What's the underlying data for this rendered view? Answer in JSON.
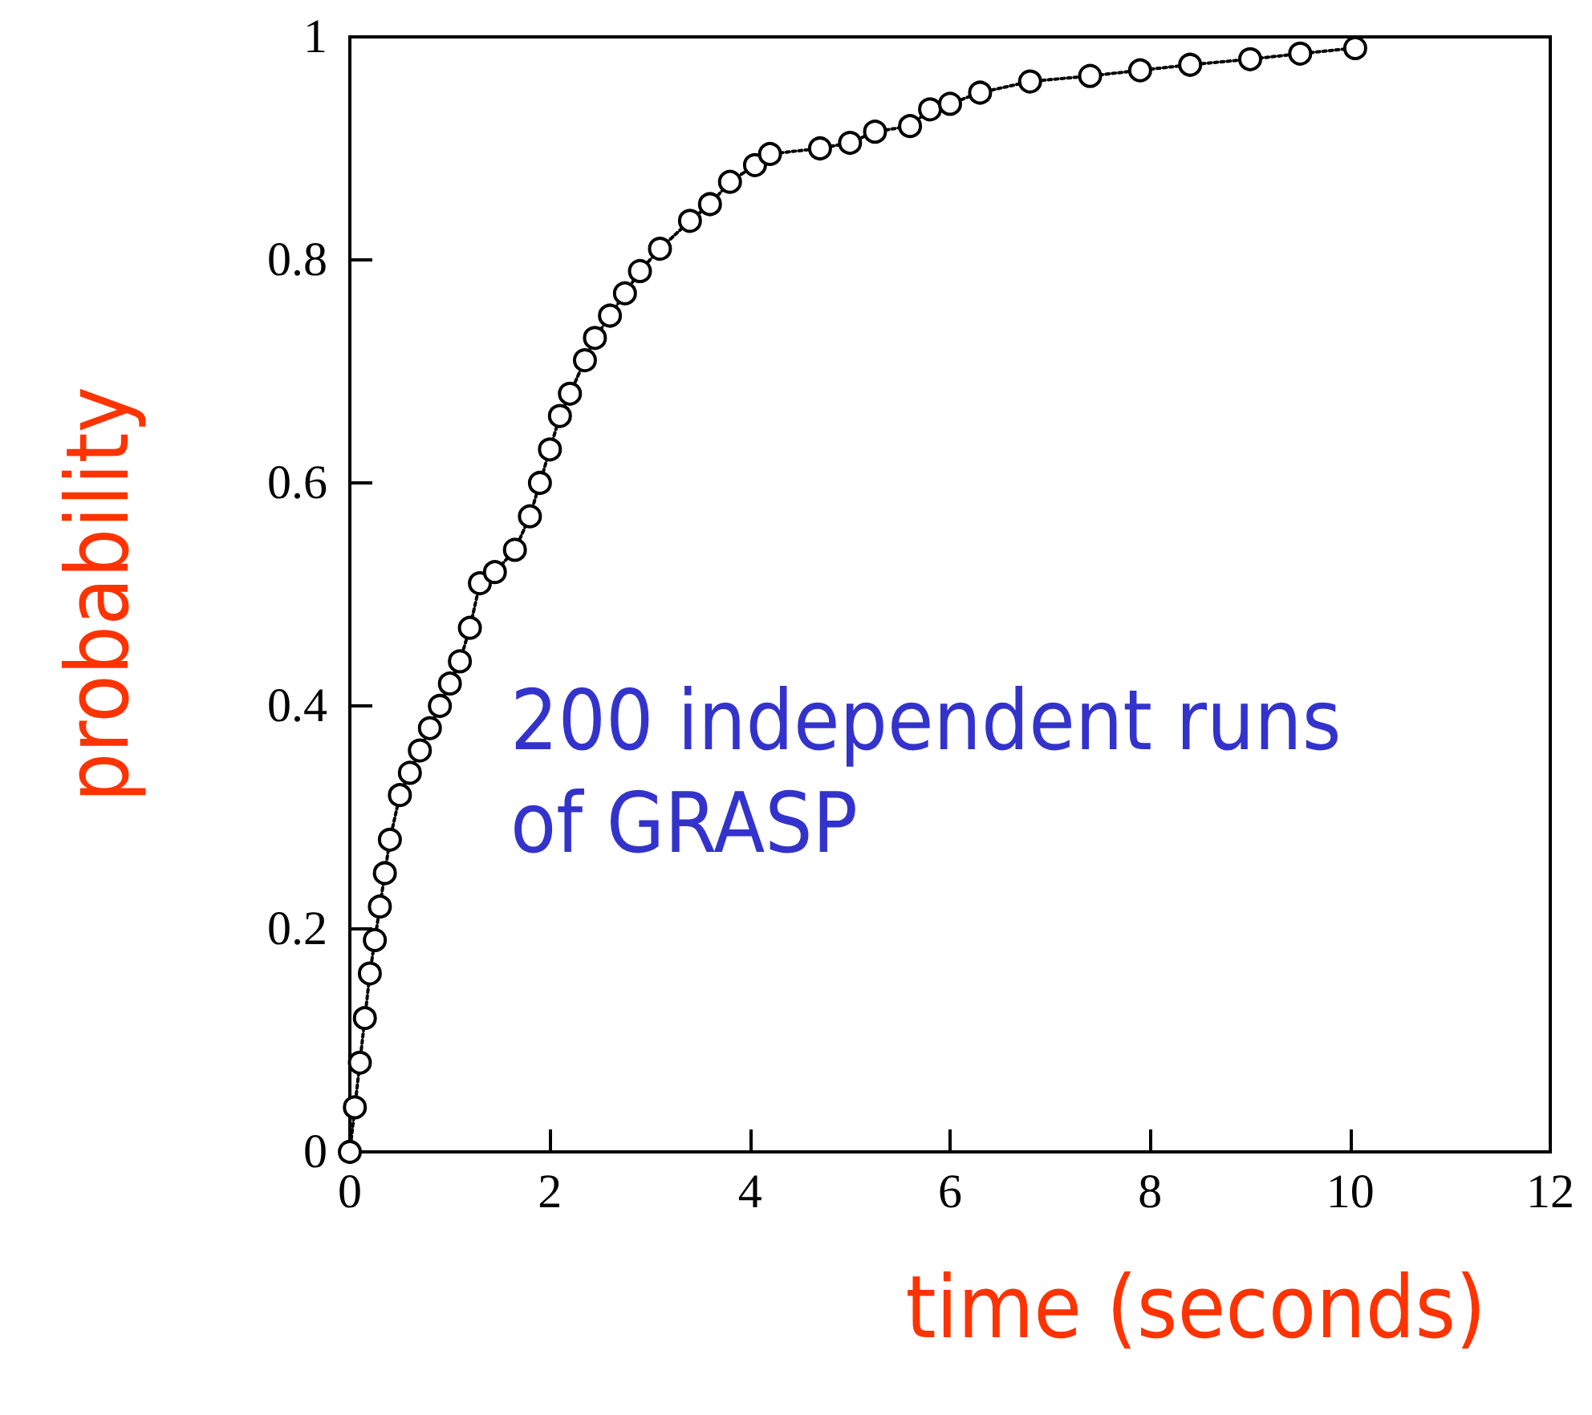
{
  "chart_data": {
    "type": "line",
    "xlabel": "time (seconds)",
    "ylabel": "probability",
    "annotations": [
      "200 independent runs\nof GRASP"
    ],
    "x": [
      0.0,
      0.05,
      0.1,
      0.15,
      0.2,
      0.25,
      0.3,
      0.35,
      0.4,
      0.5,
      0.6,
      0.7,
      0.8,
      0.9,
      1.0,
      1.1,
      1.2,
      1.3,
      1.45,
      1.65,
      1.8,
      1.9,
      2.0,
      2.1,
      2.2,
      2.35,
      2.45,
      2.6,
      2.75,
      2.9,
      3.1,
      3.4,
      3.6,
      3.8,
      4.05,
      4.2,
      4.7,
      5.0,
      5.25,
      5.6,
      5.8,
      6.0,
      6.3,
      6.8,
      7.4,
      7.9,
      8.4,
      9.0,
      9.5,
      10.05
    ],
    "series": [
      {
        "color": "#000000",
        "values": [
          0.0,
          0.04,
          0.08,
          0.12,
          0.16,
          0.19,
          0.22,
          0.25,
          0.28,
          0.32,
          0.34,
          0.36,
          0.38,
          0.4,
          0.42,
          0.44,
          0.47,
          0.51,
          0.52,
          0.54,
          0.57,
          0.6,
          0.63,
          0.66,
          0.68,
          0.71,
          0.73,
          0.75,
          0.77,
          0.79,
          0.81,
          0.835,
          0.85,
          0.87,
          0.885,
          0.895,
          0.9,
          0.905,
          0.915,
          0.92,
          0.935,
          0.94,
          0.95,
          0.96,
          0.965,
          0.97,
          0.975,
          0.98,
          0.985,
          0.99
        ]
      }
    ],
    "xlim": [
      0,
      12
    ],
    "xticks": [
      0,
      2,
      4,
      6,
      8,
      10,
      12
    ],
    "ylim": [
      0,
      1
    ],
    "yticks": [
      0,
      0.2,
      0.4,
      0.6,
      0.8,
      1
    ],
    "grid": false,
    "marker": "circle",
    "line_style": "dotted"
  }
}
